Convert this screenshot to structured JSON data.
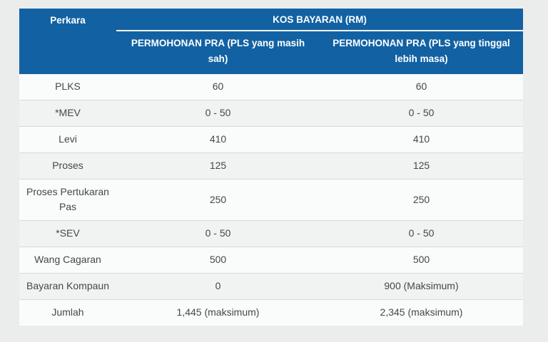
{
  "colors": {
    "header_bg": "#1262a3",
    "header_text": "#ffffff",
    "row_odd": "#fafbfb",
    "row_even": "#f1f2f2",
    "border": "#d7d8d9",
    "text": "#474747",
    "page_bg": "#ebecec"
  },
  "table": {
    "header": {
      "perkara": "Perkara",
      "group": "KOS BAYARAN (RM)",
      "sub1": "PERMOHONAN PRA (PLS yang masih sah)",
      "sub2": "PERMOHONAN PRA (PLS yang tinggal lebih masa)"
    },
    "rows": [
      {
        "label": "PLKS",
        "pra_valid": "60",
        "pra_overstay": "60"
      },
      {
        "label": "*MEV",
        "pra_valid": "0 - 50",
        "pra_overstay": "0 - 50"
      },
      {
        "label": "Levi",
        "pra_valid": "410",
        "pra_overstay": "410"
      },
      {
        "label": "Proses",
        "pra_valid": "125",
        "pra_overstay": "125"
      },
      {
        "label": "Proses Pertukaran Pas",
        "pra_valid": "250",
        "pra_overstay": "250"
      },
      {
        "label": "*SEV",
        "pra_valid": "0 - 50",
        "pra_overstay": "0 - 50"
      },
      {
        "label": "Wang Cagaran",
        "pra_valid": "500",
        "pra_overstay": "500"
      },
      {
        "label": "Bayaran Kompaun",
        "pra_valid": "0",
        "pra_overstay": "900 (Maksimum)"
      },
      {
        "label": "Jumlah",
        "pra_valid": "1,445 (maksimum)",
        "pra_overstay": "2,345 (maksimum)"
      }
    ]
  }
}
